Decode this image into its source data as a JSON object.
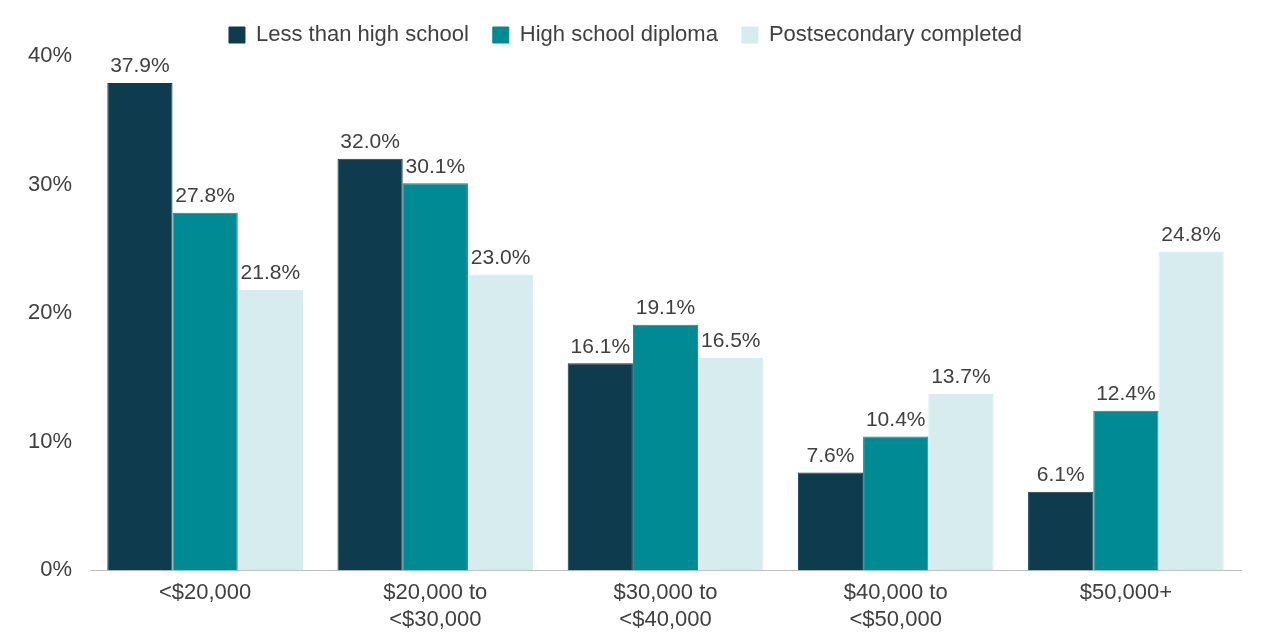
{
  "chart_data": {
    "type": "bar",
    "categories": [
      "<$20,000",
      "$20,000 to <$30,000",
      "$30,000 to <$40,000",
      "$40,000 to <$50,000",
      "$50,000+"
    ],
    "series": [
      {
        "name": "Less than high school",
        "color": "#0e3b4e",
        "values": [
          37.9,
          32.0,
          16.1,
          7.6,
          6.1
        ],
        "value_labels": [
          "37.9%",
          "32.0%",
          "16.1%",
          "7.6%",
          "6.1%"
        ]
      },
      {
        "name": "High school diploma",
        "color": "#008b94",
        "values": [
          27.8,
          30.1,
          19.1,
          10.4,
          12.4
        ],
        "value_labels": [
          "27.8%",
          "30.1%",
          "19.1%",
          "10.4%",
          "12.4%"
        ]
      },
      {
        "name": "Postsecondary completed",
        "color": "#d6ecee",
        "values": [
          21.8,
          23.0,
          16.5,
          13.7,
          24.8
        ],
        "value_labels": [
          "21.8%",
          "23.0%",
          "16.5%",
          "13.7%",
          "24.8%"
        ]
      }
    ],
    "ylim": [
      0,
      40
    ],
    "yticks": [
      {
        "value": 0,
        "label": "0%"
      },
      {
        "value": 10,
        "label": "10%"
      },
      {
        "value": 20,
        "label": "20%"
      },
      {
        "value": 30,
        "label": "30%"
      },
      {
        "value": 40,
        "label": "40%"
      }
    ],
    "grid": false,
    "legend": "top"
  }
}
